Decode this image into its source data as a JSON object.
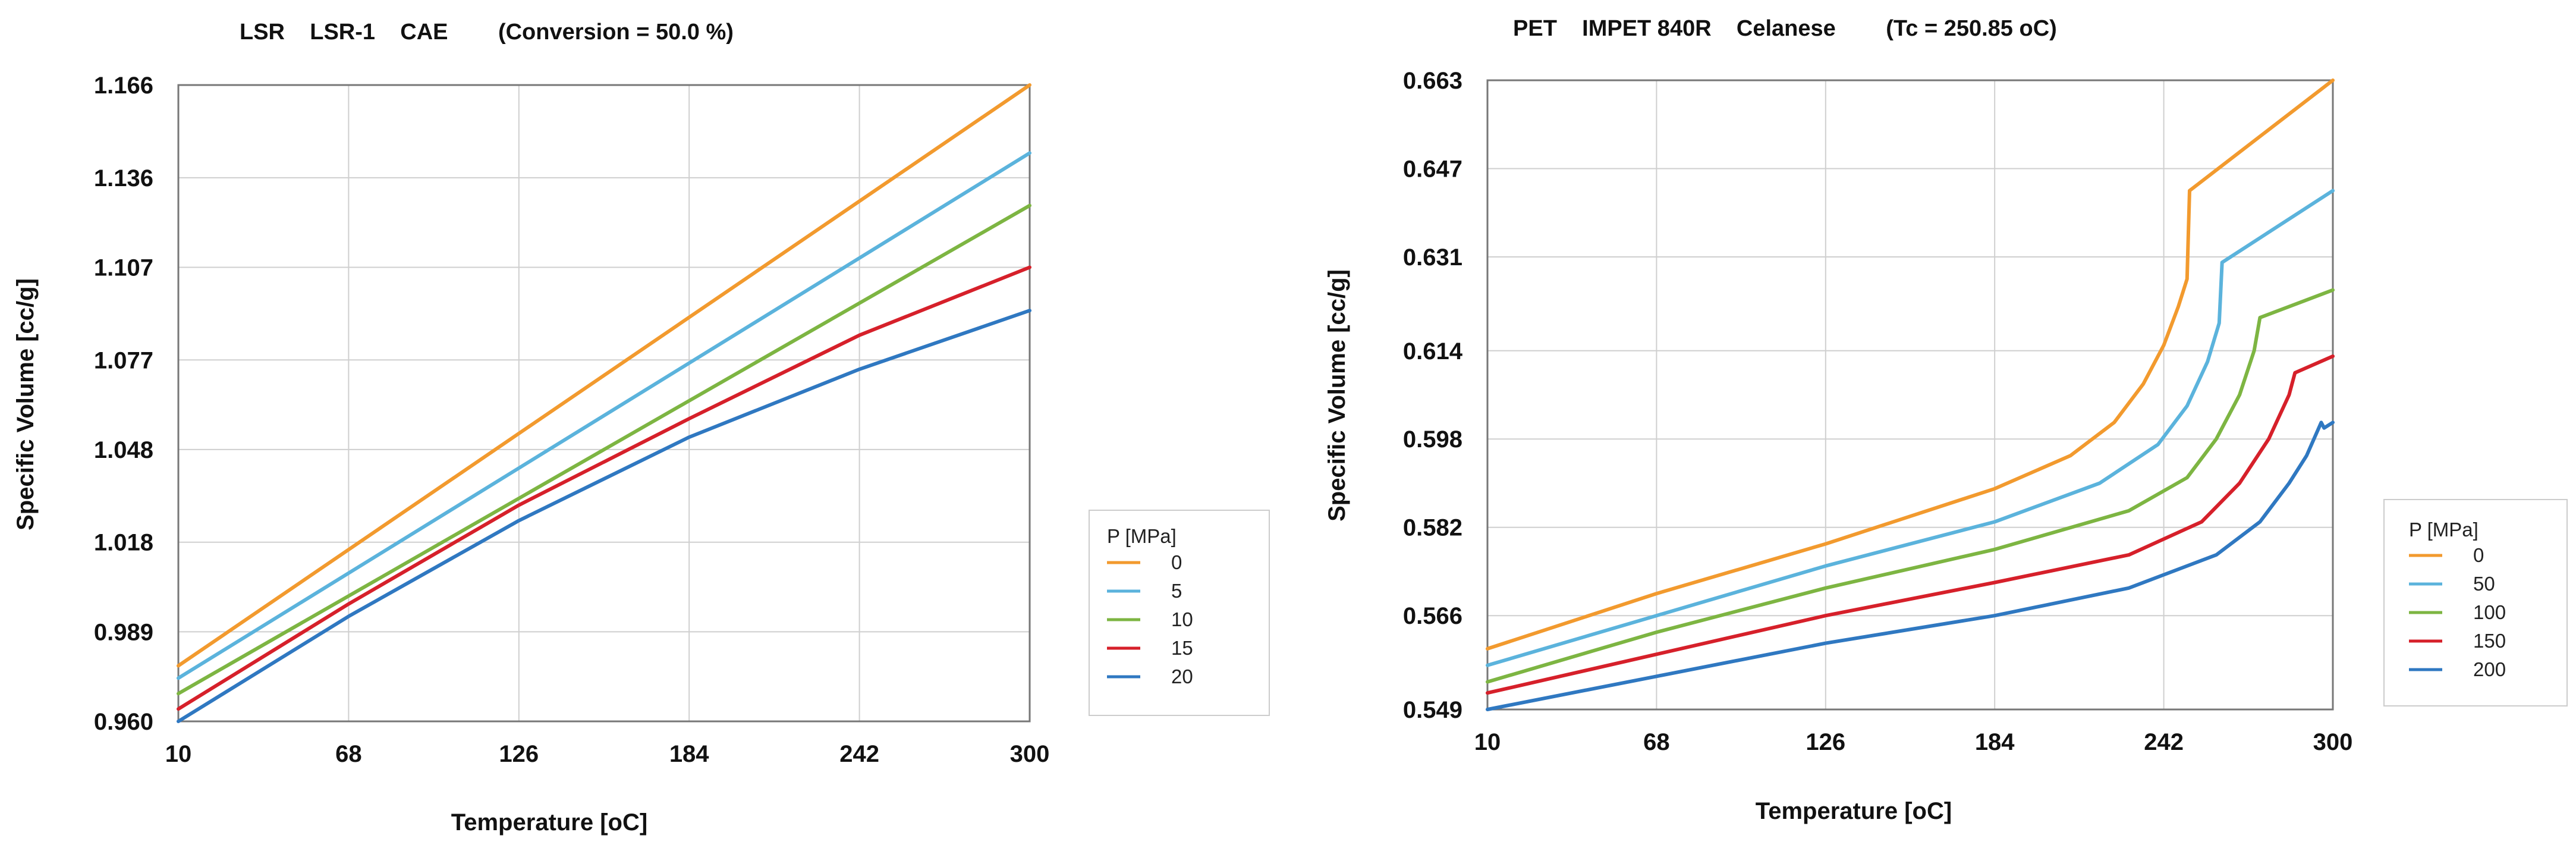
{
  "chart_data": [
    {
      "type": "line",
      "title": "LSR    LSR-1    CAE        (Conversion = 50.0 %)",
      "xlabel": "Temperature [oC]",
      "ylabel": "Specific Volume [cc/g]",
      "xlim": [
        10,
        300
      ],
      "ylim": [
        0.96,
        1.166
      ],
      "x_ticks": [
        "10",
        "68",
        "126",
        "184",
        "242",
        "300"
      ],
      "x_tick_values": [
        10,
        68,
        126,
        184,
        242,
        300
      ],
      "y_ticks": [
        "0.960",
        "0.989",
        "1.018",
        "1.048",
        "1.077",
        "1.107",
        "1.136",
        "1.166"
      ],
      "y_tick_values": [
        0.96,
        0.989,
        1.018,
        1.048,
        1.077,
        1.107,
        1.136,
        1.166
      ],
      "legend_title": "P [MPa]",
      "legend_position": "right",
      "grid": true,
      "series": [
        {
          "name": "0",
          "color": "#f29a2e",
          "x": [
            10,
            300
          ],
          "y": [
            0.978,
            1.166
          ]
        },
        {
          "name": "5",
          "color": "#5bb3dc",
          "x": [
            10,
            300
          ],
          "y": [
            0.974,
            1.144
          ]
        },
        {
          "name": "10",
          "color": "#7db542",
          "x": [
            10,
            300
          ],
          "y": [
            0.969,
            1.127
          ]
        },
        {
          "name": "15",
          "color": "#d6202a",
          "x": [
            10,
            68,
            126,
            184,
            242,
            300
          ],
          "y": [
            0.964,
            0.998,
            1.03,
            1.058,
            1.085,
            1.107
          ]
        },
        {
          "name": "20",
          "color": "#2f78c1",
          "x": [
            10,
            68,
            126,
            184,
            242,
            300
          ],
          "y": [
            0.96,
            0.994,
            1.025,
            1.052,
            1.074,
            1.093
          ]
        }
      ]
    },
    {
      "type": "line",
      "title": "PET    IMPET 840R    Celanese        (Tc = 250.85 oC)",
      "xlabel": "Temperature [oC]",
      "ylabel": "Specific Volume [cc/g]",
      "xlim": [
        10,
        300
      ],
      "ylim": [
        0.549,
        0.663
      ],
      "x_ticks": [
        "10",
        "68",
        "126",
        "184",
        "242",
        "300"
      ],
      "x_tick_values": [
        10,
        68,
        126,
        184,
        242,
        300
      ],
      "y_ticks": [
        "0.549",
        "0.566",
        "0.582",
        "0.598",
        "0.614",
        "0.631",
        "0.647",
        "0.663"
      ],
      "y_tick_values": [
        0.549,
        0.566,
        0.582,
        0.598,
        0.614,
        0.631,
        0.647,
        0.663
      ],
      "legend_title": "P [MPa]",
      "legend_position": "right",
      "grid": true,
      "series": [
        {
          "name": "0",
          "color": "#f29a2e",
          "x": [
            10,
            68,
            126,
            184,
            210,
            225,
            235,
            242,
            247,
            250,
            250.85,
            300
          ],
          "y": [
            0.56,
            0.57,
            0.579,
            0.589,
            0.595,
            0.601,
            0.608,
            0.615,
            0.622,
            0.627,
            0.643,
            0.663
          ]
        },
        {
          "name": "50",
          "color": "#5bb3dc",
          "x": [
            10,
            68,
            126,
            184,
            220,
            240,
            250,
            257,
            261,
            262,
            300
          ],
          "y": [
            0.557,
            0.566,
            0.575,
            0.583,
            0.59,
            0.597,
            0.604,
            0.612,
            0.619,
            0.63,
            0.643
          ]
        },
        {
          "name": "100",
          "color": "#7db542",
          "x": [
            10,
            68,
            126,
            184,
            230,
            250,
            260,
            268,
            273,
            275,
            300
          ],
          "y": [
            0.554,
            0.563,
            0.571,
            0.578,
            0.585,
            0.591,
            0.598,
            0.606,
            0.614,
            0.62,
            0.625
          ]
        },
        {
          "name": "150",
          "color": "#d6202a",
          "x": [
            10,
            68,
            126,
            184,
            230,
            255,
            268,
            278,
            285,
            287,
            300
          ],
          "y": [
            0.552,
            0.559,
            0.566,
            0.572,
            0.577,
            0.583,
            0.59,
            0.598,
            0.606,
            0.61,
            0.613
          ]
        },
        {
          "name": "200",
          "color": "#2f78c1",
          "x": [
            10,
            68,
            126,
            184,
            230,
            260,
            275,
            285,
            291,
            296,
            297,
            300
          ],
          "y": [
            0.549,
            0.555,
            0.561,
            0.566,
            0.571,
            0.577,
            0.583,
            0.59,
            0.595,
            0.601,
            0.6,
            0.601
          ]
        }
      ]
    }
  ]
}
